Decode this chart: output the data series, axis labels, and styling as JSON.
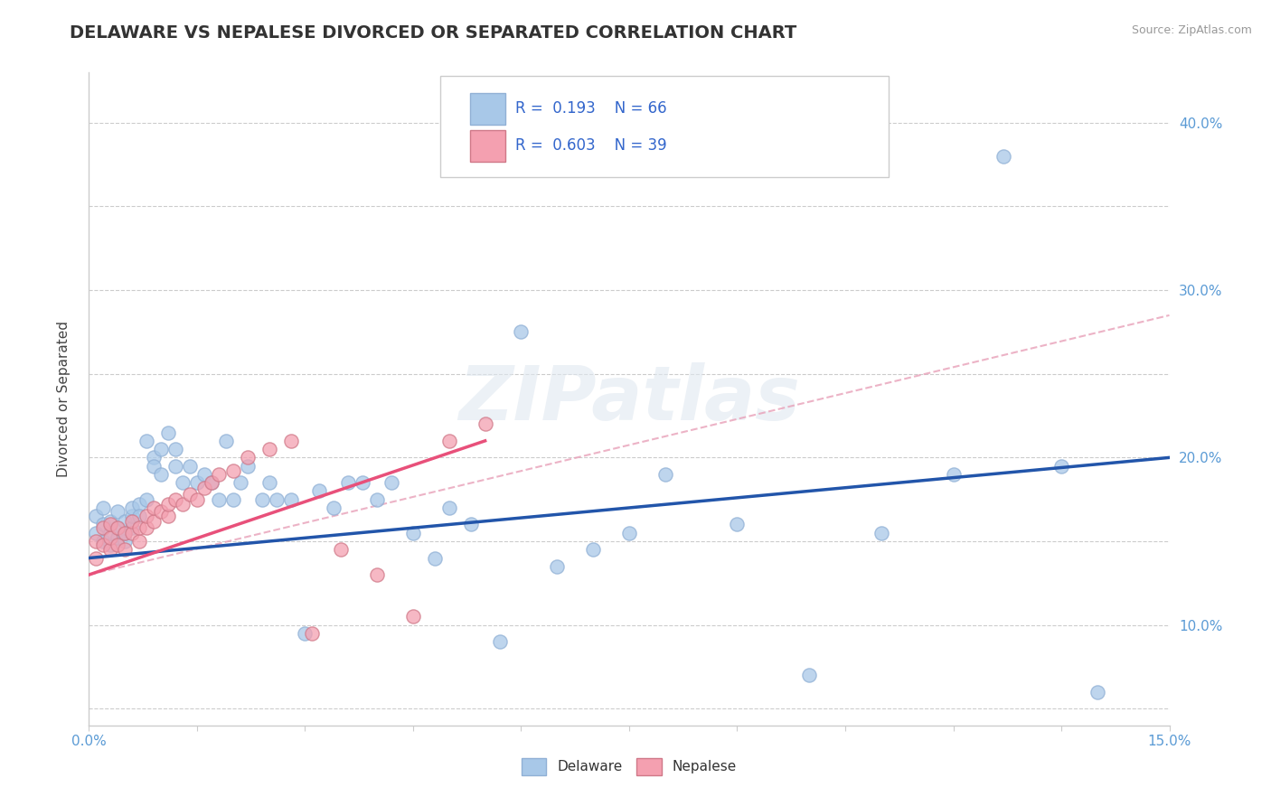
{
  "title": "DELAWARE VS NEPALESE DIVORCED OR SEPARATED CORRELATION CHART",
  "source": "Source: ZipAtlas.com",
  "ylabel": "Divorced or Separated",
  "xlim": [
    0.0,
    0.15
  ],
  "ylim": [
    0.04,
    0.43
  ],
  "xtick_positions": [
    0.0,
    0.015,
    0.03,
    0.045,
    0.06,
    0.075,
    0.09,
    0.105,
    0.12,
    0.135,
    0.15
  ],
  "xticklabels": [
    "0.0%",
    "",
    "",
    "",
    "",
    "",
    "",
    "",
    "",
    "",
    "15.0%"
  ],
  "ytick_positions": [
    0.05,
    0.1,
    0.15,
    0.2,
    0.25,
    0.3,
    0.35,
    0.4
  ],
  "yticklabels": [
    "",
    "10.0%",
    "",
    "20.0%",
    "",
    "30.0%",
    "",
    "40.0%"
  ],
  "delaware_color": "#a8c8e8",
  "nepalese_color": "#f4a0b0",
  "trend_delaware_color": "#2255aa",
  "trend_nepalese_color": "#e8507a",
  "trend_dashed_color": "#e8a0b8",
  "R_delaware": 0.193,
  "N_delaware": 66,
  "R_nepalese": 0.603,
  "N_nepalese": 39,
  "watermark": "ZIPatlas",
  "title_fontsize": 14,
  "label_fontsize": 11,
  "tick_fontsize": 11,
  "delaware_x": [
    0.001,
    0.001,
    0.002,
    0.002,
    0.002,
    0.003,
    0.003,
    0.003,
    0.004,
    0.004,
    0.004,
    0.005,
    0.005,
    0.005,
    0.006,
    0.006,
    0.006,
    0.007,
    0.007,
    0.008,
    0.008,
    0.009,
    0.009,
    0.01,
    0.01,
    0.011,
    0.012,
    0.012,
    0.013,
    0.014,
    0.015,
    0.016,
    0.017,
    0.018,
    0.019,
    0.02,
    0.021,
    0.022,
    0.024,
    0.025,
    0.026,
    0.028,
    0.03,
    0.032,
    0.034,
    0.036,
    0.038,
    0.04,
    0.042,
    0.045,
    0.048,
    0.05,
    0.053,
    0.057,
    0.06,
    0.065,
    0.07,
    0.075,
    0.08,
    0.09,
    0.1,
    0.11,
    0.12,
    0.127,
    0.135,
    0.14
  ],
  "delaware_y": [
    0.155,
    0.165,
    0.15,
    0.16,
    0.17,
    0.148,
    0.155,
    0.162,
    0.152,
    0.158,
    0.168,
    0.15,
    0.155,
    0.162,
    0.158,
    0.165,
    0.17,
    0.172,
    0.165,
    0.175,
    0.21,
    0.2,
    0.195,
    0.19,
    0.205,
    0.215,
    0.195,
    0.205,
    0.185,
    0.195,
    0.185,
    0.19,
    0.185,
    0.175,
    0.21,
    0.175,
    0.185,
    0.195,
    0.175,
    0.185,
    0.175,
    0.175,
    0.095,
    0.18,
    0.17,
    0.185,
    0.185,
    0.175,
    0.185,
    0.155,
    0.14,
    0.17,
    0.16,
    0.09,
    0.275,
    0.135,
    0.145,
    0.155,
    0.19,
    0.16,
    0.07,
    0.155,
    0.19,
    0.38,
    0.195,
    0.06
  ],
  "nepalese_x": [
    0.001,
    0.001,
    0.002,
    0.002,
    0.003,
    0.003,
    0.003,
    0.004,
    0.004,
    0.005,
    0.005,
    0.006,
    0.006,
    0.007,
    0.007,
    0.008,
    0.008,
    0.009,
    0.009,
    0.01,
    0.011,
    0.011,
    0.012,
    0.013,
    0.014,
    0.015,
    0.016,
    0.017,
    0.018,
    0.02,
    0.022,
    0.025,
    0.028,
    0.031,
    0.035,
    0.04,
    0.045,
    0.05,
    0.055
  ],
  "nepalese_y": [
    0.15,
    0.14,
    0.148,
    0.158,
    0.145,
    0.152,
    0.16,
    0.148,
    0.158,
    0.145,
    0.155,
    0.155,
    0.162,
    0.15,
    0.158,
    0.158,
    0.165,
    0.162,
    0.17,
    0.168,
    0.165,
    0.172,
    0.175,
    0.172,
    0.178,
    0.175,
    0.182,
    0.185,
    0.19,
    0.192,
    0.2,
    0.205,
    0.21,
    0.095,
    0.145,
    0.13,
    0.105,
    0.21,
    0.22
  ],
  "del_trend_x0": 0.0,
  "del_trend_y0": 0.14,
  "del_trend_x1": 0.15,
  "del_trend_y1": 0.2,
  "nep_trend_x0": 0.0,
  "nep_trend_y0": 0.13,
  "nep_trend_x1": 0.055,
  "nep_trend_y1": 0.21,
  "dash_trend_x0": 0.0,
  "dash_trend_y0": 0.13,
  "dash_trend_x1": 0.15,
  "dash_trend_y1": 0.285,
  "legend_R_del": "R =  0.193",
  "legend_N_del": "N = 66",
  "legend_R_nep": "R =  0.603",
  "legend_N_nep": "N = 39",
  "label_delaware": "Delaware",
  "label_nepalese": "Nepalese"
}
